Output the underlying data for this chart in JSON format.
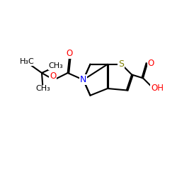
{
  "background": "#ffffff",
  "atom_colors": {
    "O": "#ff0000",
    "N": "#0000ff",
    "S": "#808000",
    "C": "#000000"
  },
  "bond_lw": 1.5,
  "font_size": 8.5,
  "fig_size": [
    2.5,
    2.5
  ],
  "dpi": 100,
  "xlim": [
    0,
    10
  ],
  "ylim": [
    0,
    10
  ]
}
